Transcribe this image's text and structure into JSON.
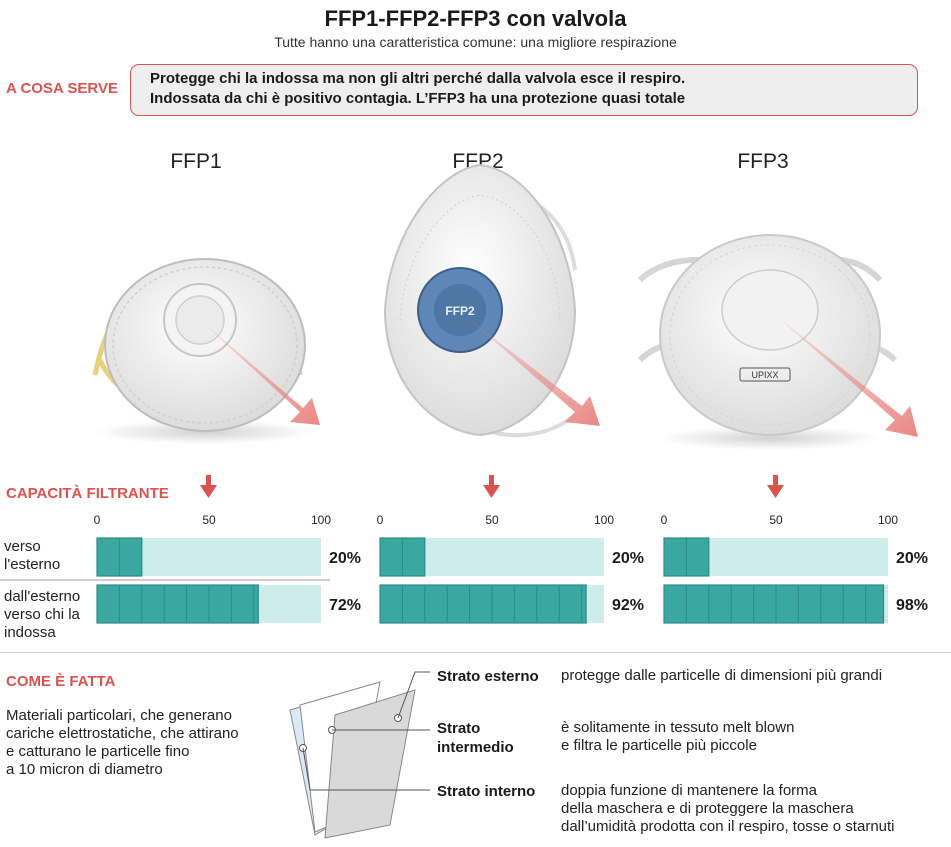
{
  "header": {
    "title": "FFP1-FFP2-FFP3 con valvola",
    "subtitle": "Tutte hanno una caratteristica comune: una migliore respirazione"
  },
  "purpose": {
    "label": "A COSA SERVE",
    "line1": "Protegge chi la indossa ma non gli altri perché dalla valvola esce il respiro.",
    "line2": "Indossata da chi è positivo contagia. L’FFP3 ha una protezione quasi totale"
  },
  "masks": [
    {
      "name": "FFP1",
      "valve_text": "",
      "brand_text": ""
    },
    {
      "name": "FFP2",
      "valve_text": "FFP2",
      "brand_text": ""
    },
    {
      "name": "FFP3",
      "valve_text": "",
      "brand_text": "UPIXX"
    }
  ],
  "colors": {
    "accent": "#d9534f",
    "bar_fill": "#3aa8a0",
    "bar_track": "#cdeceb",
    "bar_border": "#2b8c86",
    "arrow": "#e8827d"
  },
  "capacity": {
    "label": "CAPACITÀ FILTRANTE",
    "row_labels": [
      [
        "verso",
        "l'esterno"
      ],
      [
        "dall'esterno",
        "verso chi la",
        "indossa"
      ]
    ]
  },
  "chart_data": {
    "type": "bar",
    "title": "CAPACITÀ FILTRANTE",
    "orientation": "horizontal",
    "xlim": [
      0,
      100
    ],
    "ticks": [
      "0",
      "50",
      "100"
    ],
    "categories": [
      "verso l'esterno",
      "dall'esterno verso chi la indossa"
    ],
    "series": [
      {
        "name": "FFP1",
        "values": [
          20,
          72
        ],
        "labels": [
          "20%",
          "72%"
        ]
      },
      {
        "name": "FFP2",
        "values": [
          20,
          92
        ],
        "labels": [
          "20%",
          "92%"
        ]
      },
      {
        "name": "FFP3",
        "values": [
          20,
          98
        ],
        "labels": [
          "20%",
          "98%"
        ]
      }
    ]
  },
  "how": {
    "label": "COME È FATTA",
    "description": [
      "Materiali particolari, che generano",
      "cariche elettrostatiche, che attirano",
      "e catturano le particelle fino",
      "a 10 micron di diametro"
    ],
    "layers": [
      {
        "title": [
          "Strato esterno"
        ],
        "desc": [
          "protegge dalle particelle di dimensioni più grandi"
        ]
      },
      {
        "title": [
          "Strato",
          "intermedio"
        ],
        "desc": [
          "è solitamente in tessuto melt blown",
          "e filtra le particelle più piccole"
        ]
      },
      {
        "title": [
          "Strato interno"
        ],
        "desc": [
          "doppia funzione di mantenere la forma",
          "della maschera e di proteggere la maschera",
          "dall’umidità prodotta con il respiro, tosse o starnuti"
        ]
      }
    ]
  }
}
